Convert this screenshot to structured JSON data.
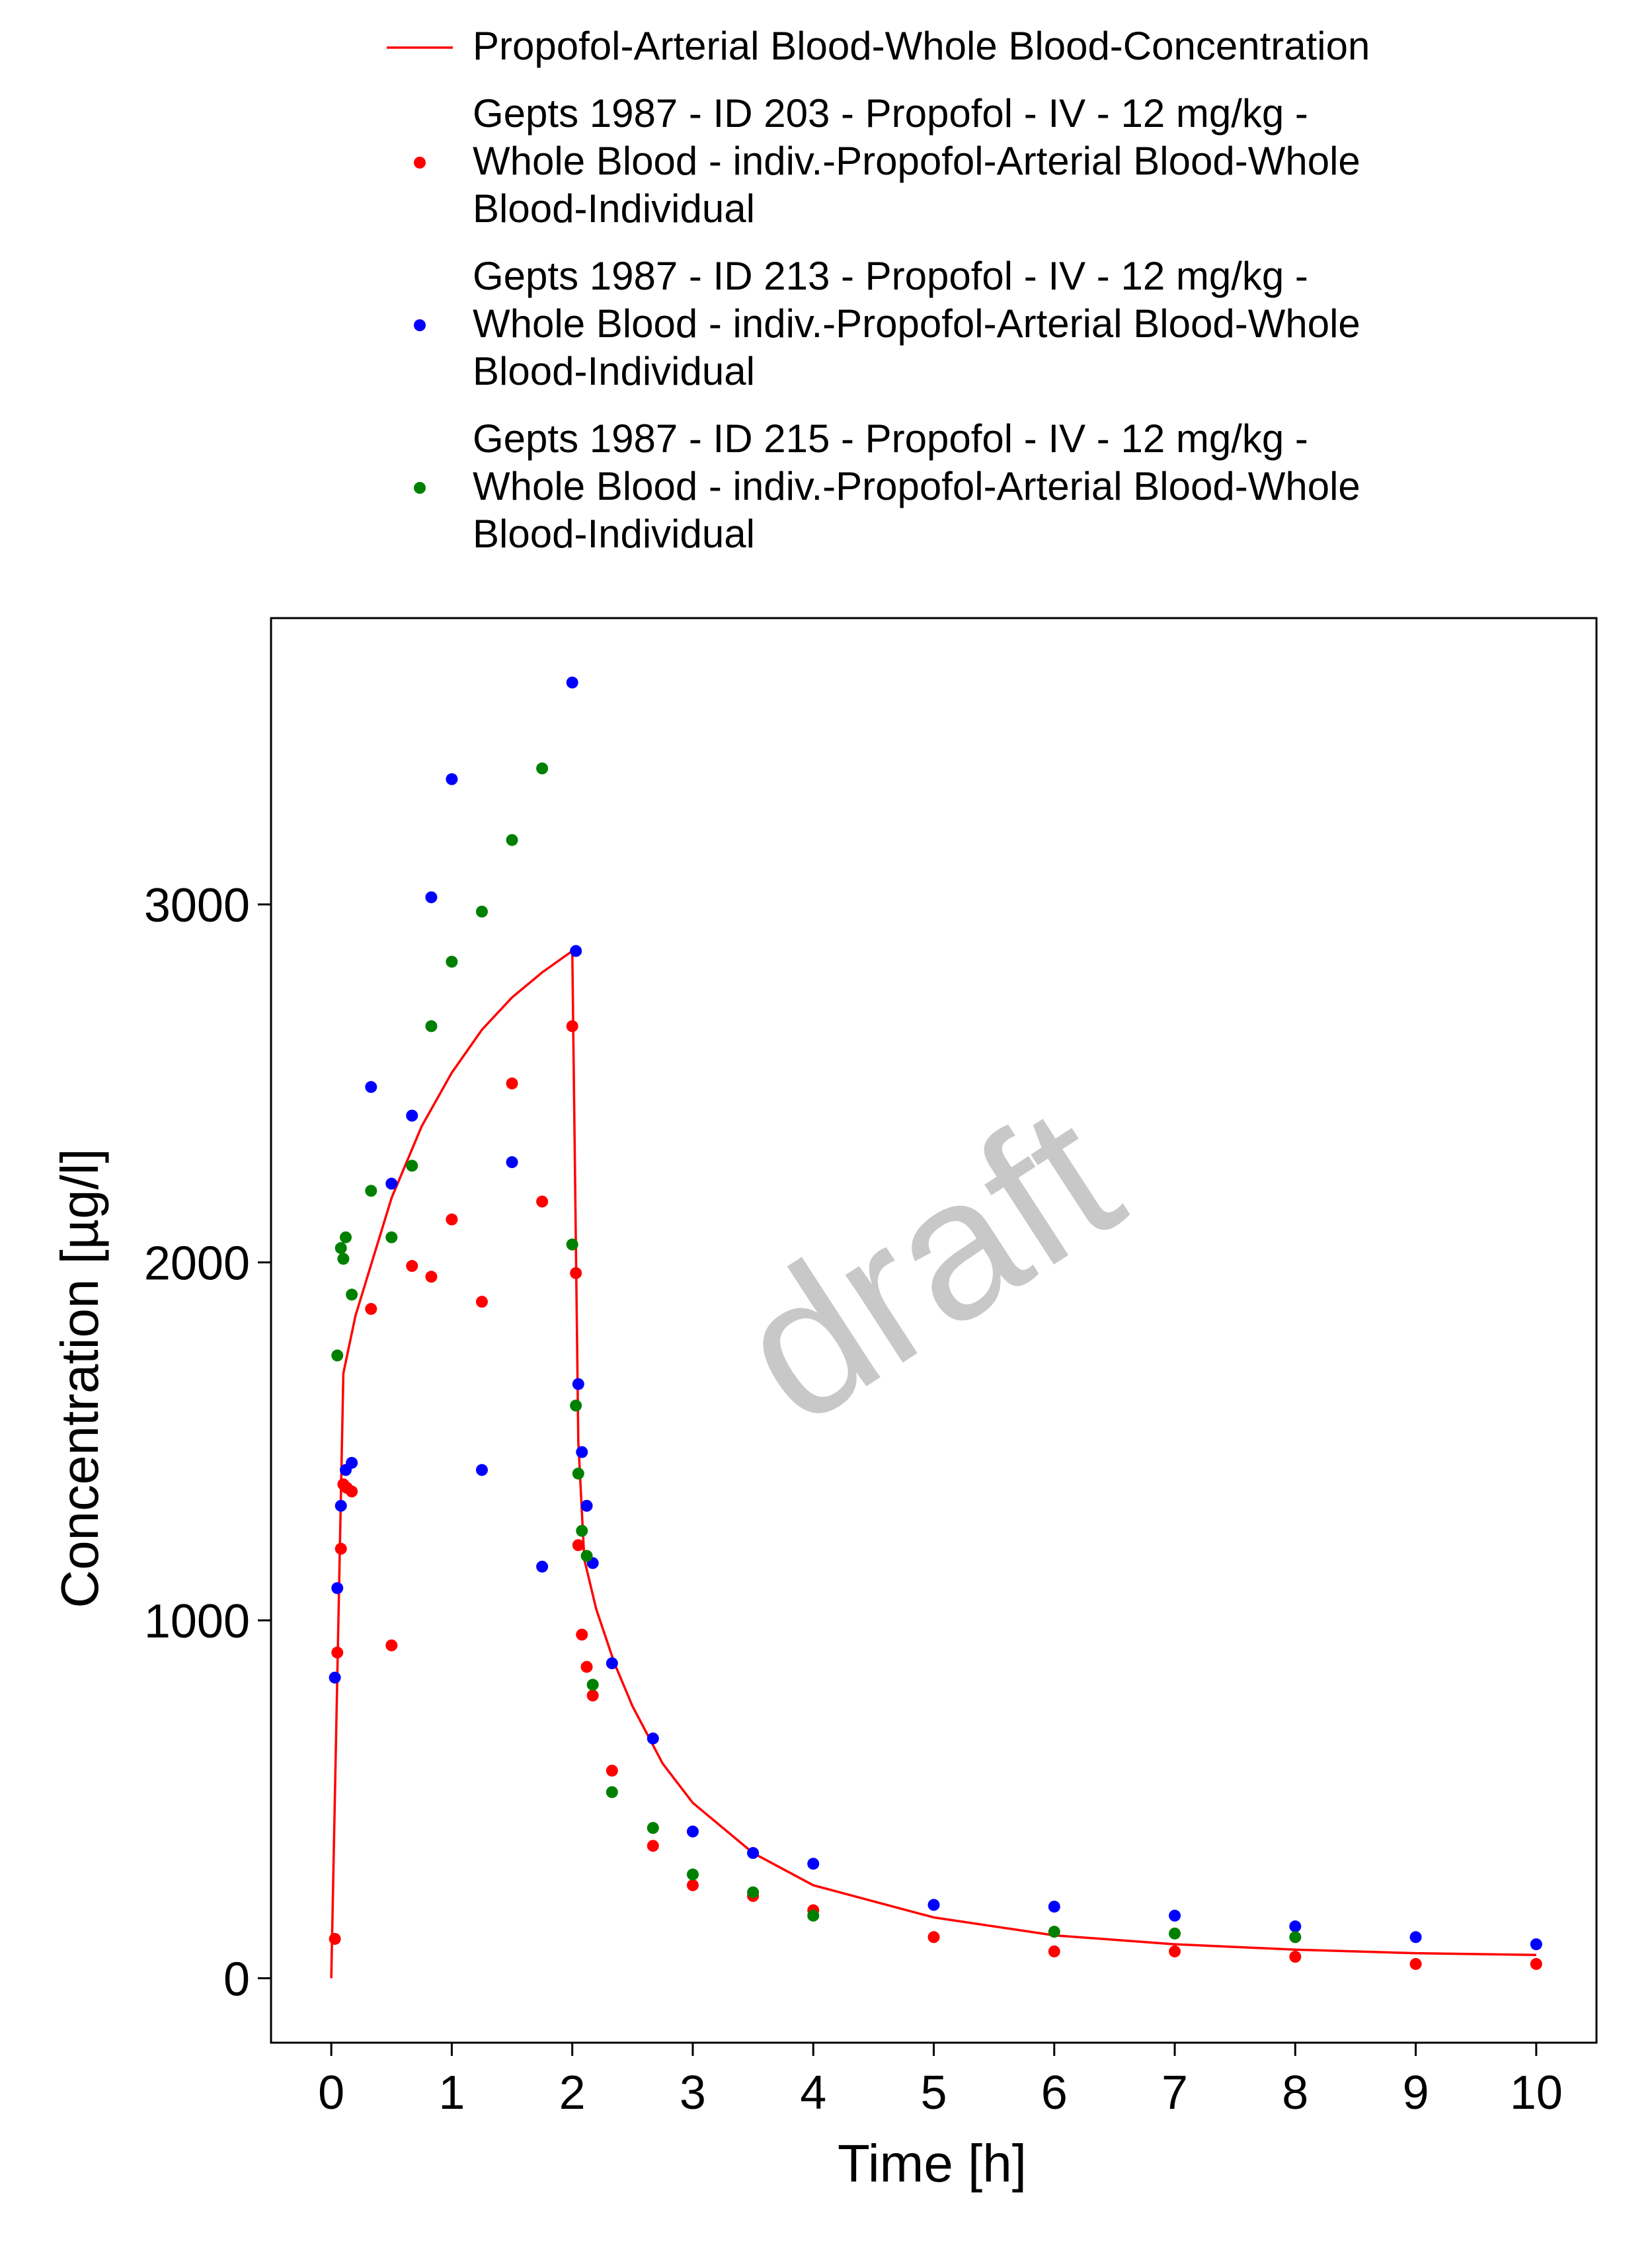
{
  "chart_data": {
    "type": "line",
    "xlabel": "Time [h]",
    "ylabel": "Concentration [µg/l]",
    "xlim": [
      -0.5,
      10.5
    ],
    "ylim": [
      -180,
      3800
    ],
    "x_ticks": [
      0,
      1,
      2,
      3,
      4,
      5,
      6,
      7,
      8,
      9,
      10
    ],
    "y_ticks": [
      0,
      1000,
      2000,
      3000
    ],
    "grid": false,
    "legend_position": "top",
    "watermark": "draft",
    "series": [
      {
        "name": "Propofol-Arterial Blood-Whole Blood-Concentration",
        "kind": "line",
        "color": "#ff0000",
        "legend_lines": [
          "Propofol-Arterial Blood-Whole Blood-Concentration"
        ],
        "x": [
          0,
          0.1,
          0.2,
          0.3,
          0.5,
          0.75,
          1.0,
          1.25,
          1.5,
          1.75,
          2.0,
          2.05,
          2.1,
          2.2,
          2.35,
          2.5,
          2.75,
          3.0,
          3.5,
          4.0,
          5.0,
          6.0,
          7.0,
          8.0,
          9.0,
          10.0
        ],
        "y": [
          0,
          1690,
          1850,
          1960,
          2180,
          2380,
          2530,
          2650,
          2740,
          2810,
          2870,
          1500,
          1170,
          1030,
          880,
          760,
          600,
          490,
          350,
          260,
          170,
          120,
          95,
          80,
          70,
          65
        ]
      },
      {
        "name": "Gepts 1987 - ID 203 - Propofol - IV - 12 mg/kg - Whole Blood - indiv.-Propofol-Arterial Blood-Whole Blood-Individual",
        "kind": "scatter",
        "color": "#ff0000",
        "legend_lines": [
          "Gepts 1987 - ID 203 - Propofol - IV - 12 mg/kg -",
          "Whole Blood - indiv.-Propofol-Arterial Blood-Whole",
          "Blood-Individual"
        ],
        "x": [
          0.03,
          0.05,
          0.08,
          0.1,
          0.13,
          0.17,
          0.33,
          0.5,
          0.67,
          0.83,
          1.0,
          1.25,
          1.5,
          1.75,
          2.0,
          2.03,
          2.05,
          2.08,
          2.12,
          2.17,
          2.33,
          2.67,
          3.0,
          3.5,
          4.0,
          5.0,
          6.0,
          7.0,
          8.0,
          9.0,
          10.0
        ],
        "y": [
          110,
          910,
          1200,
          1380,
          1370,
          1360,
          1870,
          930,
          1990,
          1960,
          2120,
          1890,
          2500,
          2170,
          2660,
          1970,
          1210,
          960,
          870,
          790,
          580,
          370,
          260,
          230,
          190,
          115,
          75,
          75,
          60,
          40,
          40
        ]
      },
      {
        "name": "Gepts 1987 - ID 213 - Propofol - IV - 12 mg/kg - Whole Blood - indiv.-Propofol-Arterial Blood-Whole Blood-Individual",
        "kind": "scatter",
        "color": "#0000ff",
        "legend_lines": [
          "Gepts 1987 - ID 213 - Propofol - IV - 12 mg/kg -",
          "Whole Blood - indiv.-Propofol-Arterial Blood-Whole",
          "Blood-Individual"
        ],
        "x": [
          0.03,
          0.05,
          0.08,
          0.12,
          0.17,
          0.33,
          0.5,
          0.67,
          0.83,
          1.0,
          1.25,
          1.5,
          1.75,
          2.0,
          2.03,
          2.05,
          2.08,
          2.12,
          2.17,
          2.33,
          2.67,
          3.0,
          3.5,
          4.0,
          5.0,
          6.0,
          7.0,
          8.0,
          9.0,
          10.0
        ],
        "y": [
          840,
          1090,
          1320,
          1420,
          1440,
          2490,
          2220,
          2410,
          3020,
          3350,
          1420,
          2280,
          1150,
          3620,
          2870,
          1660,
          1470,
          1320,
          1160,
          880,
          670,
          410,
          350,
          320,
          205,
          200,
          175,
          145,
          115,
          95
        ]
      },
      {
        "name": "Gepts 1987 - ID 215 - Propofol - IV - 12 mg/kg - Whole Blood - indiv.-Propofol-Arterial Blood-Whole Blood-Individual",
        "kind": "scatter",
        "color": "#008000",
        "legend_lines": [
          "Gepts 1987 - ID 215 - Propofol - IV - 12 mg/kg -",
          "Whole Blood - indiv.-Propofol-Arterial Blood-Whole",
          "Blood-Individual"
        ],
        "x": [
          0.05,
          0.08,
          0.1,
          0.12,
          0.17,
          0.33,
          0.5,
          0.67,
          0.83,
          1.0,
          1.25,
          1.5,
          1.75,
          2.0,
          2.03,
          2.05,
          2.08,
          2.12,
          2.17,
          2.33,
          2.67,
          3.0,
          3.5,
          4.0,
          6.0,
          7.0,
          8.0
        ],
        "y": [
          1740,
          2040,
          2010,
          2070,
          1910,
          2200,
          2070,
          2270,
          2660,
          2840,
          2980,
          3180,
          3380,
          2050,
          1600,
          1410,
          1250,
          1180,
          820,
          520,
          420,
          290,
          240,
          175,
          130,
          125,
          115
        ]
      }
    ]
  }
}
